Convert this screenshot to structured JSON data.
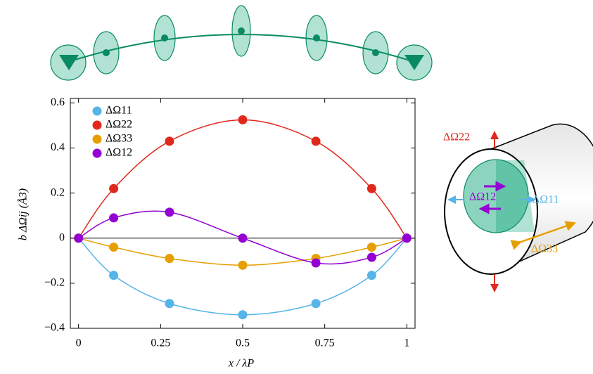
{
  "chart_data": {
    "type": "scatter-curve",
    "x_label": "x / λP",
    "y_label": "b ΔΩij (Å3)",
    "x": [
      0,
      0.107,
      0.277,
      0.5,
      0.723,
      0.893,
      1
    ],
    "series": [
      {
        "name": "ΔΩ11",
        "color": "#56b4e9",
        "values": [
          0,
          -0.165,
          -0.29,
          -0.34,
          -0.29,
          -0.165,
          0
        ]
      },
      {
        "name": "ΔΩ22",
        "color": "#e0281c",
        "values": [
          0,
          0.22,
          0.43,
          0.525,
          0.43,
          0.22,
          0
        ]
      },
      {
        "name": "ΔΩ33",
        "color": "#e69f00",
        "values": [
          0,
          -0.04,
          -0.09,
          -0.12,
          -0.09,
          -0.04,
          0
        ]
      },
      {
        "name": "ΔΩ12",
        "color": "#9400d3",
        "values": [
          0,
          0.09,
          0.115,
          0,
          -0.11,
          -0.085,
          0
        ]
      }
    ],
    "xlim": [
      -0.025,
      1.025
    ],
    "ylim": [
      -0.4,
      0.62
    ],
    "xticks": [
      0,
      0.25,
      0.5,
      0.75,
      1
    ],
    "yticks": [
      {
        "value": -0.4,
        "label": "−0.4"
      },
      {
        "value": -0.2,
        "label": "−0.2"
      },
      0,
      0.2,
      0.4,
      0.6
    ],
    "reference_line": 0,
    "grid": false,
    "legend": "upper-left"
  }
}
